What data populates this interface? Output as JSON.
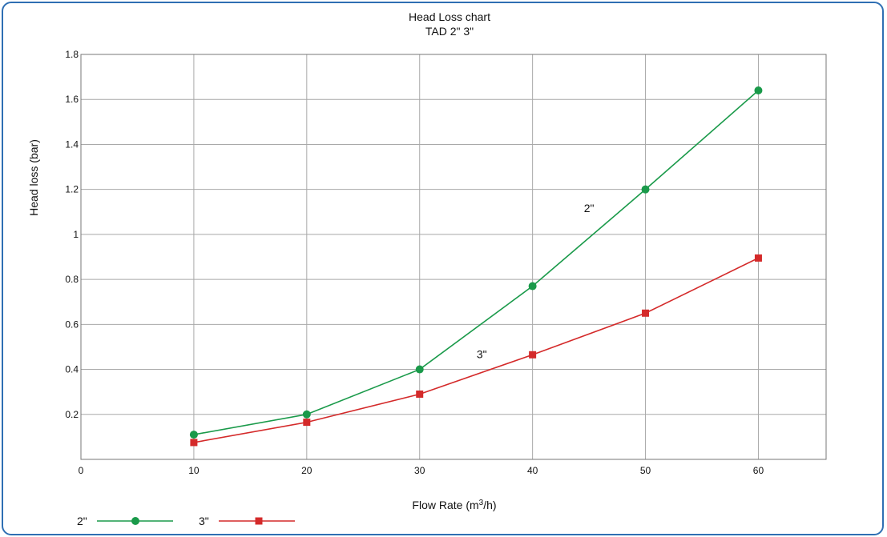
{
  "chart_data": {
    "type": "line",
    "title": "Head Loss chart",
    "subtitle": "TAD 2\" 3\"",
    "xlabel_parts": {
      "main": "Flow Rate (m",
      "sup": "3",
      "tail": "/h)"
    },
    "ylabel": "Head loss (bar)",
    "xlim": [
      0,
      66
    ],
    "ylim": [
      0,
      1.8
    ],
    "x_ticks": [
      0,
      10,
      20,
      30,
      40,
      50,
      60
    ],
    "y_ticks": [
      0.2,
      0.4,
      0.6,
      0.8,
      1,
      1.2,
      1.4,
      1.6,
      1.8
    ],
    "x_gridlines": [
      10,
      20,
      30,
      40,
      50,
      60
    ],
    "y_gridlines": [
      0.2,
      0.4,
      0.6,
      0.8,
      1,
      1.2,
      1.4,
      1.6
    ],
    "grid": true,
    "legend_position": "bottom-left",
    "series": [
      {
        "name": "2\"",
        "color": "#1a9a4a",
        "marker": "circle",
        "x": [
          10,
          20,
          30,
          40,
          50,
          60
        ],
        "y": [
          0.11,
          0.2,
          0.4,
          0.77,
          1.2,
          1.64
        ],
        "inline_label": {
          "text": "2\"",
          "x": 45,
          "y": 1.1
        }
      },
      {
        "name": "3\"",
        "color": "#d42a2a",
        "marker": "square",
        "x": [
          10,
          20,
          30,
          40,
          50,
          60
        ],
        "y": [
          0.075,
          0.165,
          0.29,
          0.465,
          0.65,
          0.895
        ],
        "inline_label": {
          "text": "3\"",
          "x": 35.5,
          "y": 0.45
        }
      }
    ]
  }
}
